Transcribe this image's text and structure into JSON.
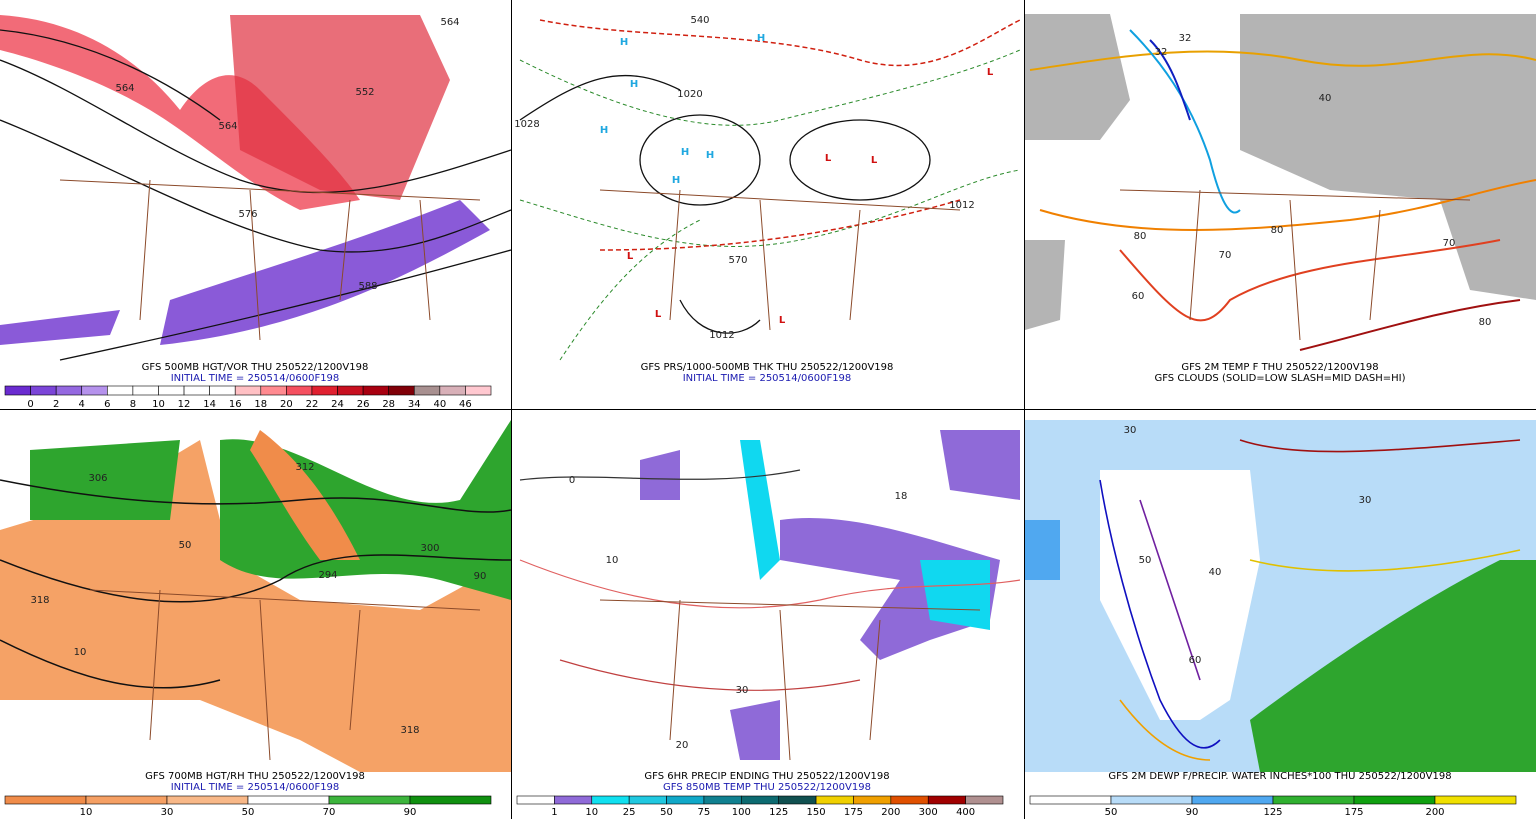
{
  "panels": [
    {
      "captions": [
        "GFS 500MB HGT/VOR THU 250522/1200V198",
        "INITIAL TIME = 250514/0600F198"
      ],
      "colorbar_labels": [
        0,
        2,
        4,
        6,
        8,
        10,
        12,
        14,
        16,
        18,
        20,
        22,
        24,
        26,
        28,
        34,
        40,
        46
      ],
      "colorbar_colors": [
        "#6a2bd0",
        "#7b45d8",
        "#9468e0",
        "#b592ec",
        "#ffffff",
        "#ffffff",
        "#ffffff",
        "#ffffff",
        "#ffffff",
        "#ffc0c4",
        "#ff8a90",
        "#f55060",
        "#e02030",
        "#c81020",
        "#a80010",
        "#800008",
        "#a89090",
        "#d8b0b8",
        "#ffc8d0"
      ],
      "map_labels": [
        "564",
        "564",
        "552",
        "576",
        "588",
        "564"
      ]
    },
    {
      "captions": [
        "GFS PRS/1000-500MB THK THU 250522/1200V198",
        "INITIAL TIME = 250514/0600F198"
      ],
      "colorbar_labels": [],
      "colorbar_colors": [],
      "map_labels": [
        "H",
        "H",
        "H",
        "H",
        "H",
        "H",
        "H",
        "L",
        "L",
        "L",
        "L",
        "L",
        "L",
        "1028",
        "1020",
        "1012",
        "1012",
        "540",
        "570"
      ]
    },
    {
      "captions": [
        "GFS 2M TEMP F THU 250522/1200V198",
        "GFS CLOUDS (SOLID=LOW SLASH=MID DASH=HI)"
      ],
      "colorbar_labels": [],
      "colorbar_colors": [],
      "map_labels": [
        "32",
        "32",
        "40",
        "60",
        "70",
        "80",
        "80",
        "70",
        "80"
      ]
    },
    {
      "captions": [
        "GFS 700MB HGT/RH THU 250522/1200V198",
        "INITIAL TIME = 250514/0600F198"
      ],
      "colorbar_labels": [
        10,
        30,
        50,
        70,
        90
      ],
      "colorbar_colors": [
        "#f08c4a",
        "#f5a064",
        "#f8b888",
        "#ffffff",
        "#3cb43c",
        "#109010"
      ],
      "map_labels": [
        "306",
        "312",
        "300",
        "294",
        "318",
        "318",
        "10",
        "50",
        "90"
      ]
    },
    {
      "captions": [
        "GFS 6HR PRECIP ENDING THU 250522/1200V198",
        "GFS 850MB TEMP THU 250522/1200V198"
      ],
      "colorbar_labels": [
        1,
        10,
        25,
        50,
        75,
        100,
        125,
        150,
        175,
        200,
        300,
        400
      ],
      "colorbar_colors": [
        "#ffffff",
        "#8f6ad8",
        "#10e0f0",
        "#20c8e0",
        "#10a8c8",
        "#108090",
        "#0c6a70",
        "#105050",
        "#f0d000",
        "#f0a000",
        "#e05000",
        "#a00000",
        "#b09090"
      ],
      "map_labels": [
        "18",
        "20",
        "30",
        "10",
        "0"
      ]
    },
    {
      "captions": [
        "GFS 2M DEWP F/PRECIP. WATER INCHES*100 THU 250522/1200V198"
      ],
      "colorbar_labels": [
        50,
        90,
        125,
        175,
        200
      ],
      "colorbar_colors": [
        "#ffffff",
        "#b8dcf8",
        "#50a8f0",
        "#30b030",
        "#10a010",
        "#f0e000"
      ],
      "map_labels": [
        "30",
        "40",
        "50",
        "60",
        "30"
      ]
    }
  ]
}
